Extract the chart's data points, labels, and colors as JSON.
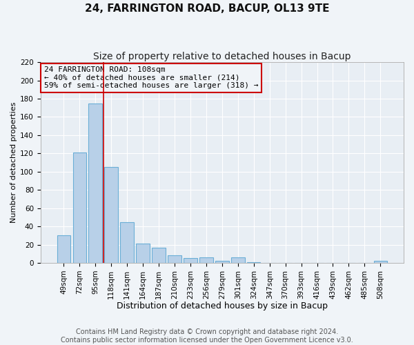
{
  "title": "24, FARRINGTON ROAD, BACUP, OL13 9TE",
  "subtitle": "Size of property relative to detached houses in Bacup",
  "xlabel": "Distribution of detached houses by size in Bacup",
  "ylabel": "Number of detached properties",
  "categories": [
    "49sqm",
    "72sqm",
    "95sqm",
    "118sqm",
    "141sqm",
    "164sqm",
    "187sqm",
    "210sqm",
    "233sqm",
    "256sqm",
    "279sqm",
    "301sqm",
    "324sqm",
    "347sqm",
    "370sqm",
    "393sqm",
    "416sqm",
    "439sqm",
    "462sqm",
    "485sqm",
    "508sqm"
  ],
  "values": [
    30,
    121,
    175,
    105,
    45,
    21,
    17,
    8,
    5,
    6,
    2,
    6,
    1,
    0,
    0,
    0,
    0,
    0,
    0,
    0,
    2
  ],
  "bar_color": "#b8d0e8",
  "bar_edgecolor": "#6aaed6",
  "vline_x": 2.5,
  "vline_color": "#cc0000",
  "annotation_title": "24 FARRINGTON ROAD: 108sqm",
  "annotation_line1": "← 40% of detached houses are smaller (214)",
  "annotation_line2": "59% of semi-detached houses are larger (318) →",
  "annotation_box_edgecolor": "#cc0000",
  "ylim": [
    0,
    220
  ],
  "yticks": [
    0,
    20,
    40,
    60,
    80,
    100,
    120,
    140,
    160,
    180,
    200,
    220
  ],
  "footer1": "Contains HM Land Registry data © Crown copyright and database right 2024.",
  "footer2": "Contains public sector information licensed under the Open Government Licence v3.0.",
  "background_color": "#f0f4f8",
  "plot_bg_color": "#e8eef4",
  "grid_color": "#ffffff",
  "title_fontsize": 11,
  "subtitle_fontsize": 10,
  "xlabel_fontsize": 9,
  "ylabel_fontsize": 8,
  "tick_fontsize": 7.5,
  "annotation_fontsize": 8,
  "footer_fontsize": 7
}
